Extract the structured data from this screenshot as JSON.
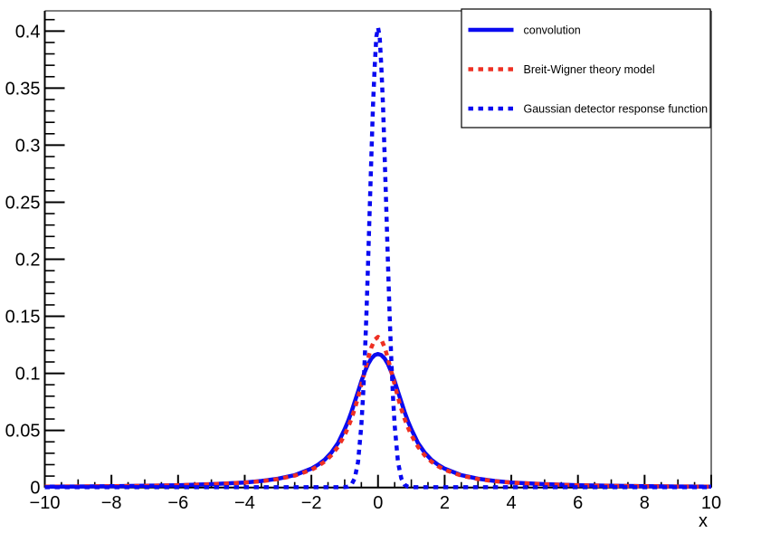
{
  "chart_data": {
    "type": "line",
    "title": "",
    "xlabel": "x",
    "ylabel": "",
    "xlim": [
      -10,
      10
    ],
    "ylim": [
      0,
      0.4177
    ],
    "grid": false,
    "background": "#ffffff",
    "frame_color": "#000000",
    "x_tick_values": [
      -10,
      -8,
      -6,
      -4,
      -2,
      0,
      2,
      4,
      6,
      8,
      10
    ],
    "x_tick_labels": [
      "−10",
      "−8",
      "−6",
      "−4",
      "−2",
      "0",
      "2",
      "4",
      "6",
      "8",
      "10"
    ],
    "x_medium_step": 1,
    "x_minor_step": 0.5,
    "y_tick_values": [
      0,
      0.05,
      0.1,
      0.15,
      0.2,
      0.25,
      0.3,
      0.35,
      0.4
    ],
    "y_tick_labels": [
      "0",
      "0.05",
      "0.1",
      "0.15",
      "0.2",
      "0.25",
      "0.3",
      "0.35",
      "0.4"
    ],
    "y_minor_step": 0.01,
    "legend_position": "top-right",
    "series": [
      {
        "name": "convolution",
        "legend_label": "convolution",
        "color": "#0a0af0",
        "line_style": "solid",
        "line_width": 4.5,
        "points": [
          [
            -10,
            0.0007
          ],
          [
            -9,
            0.0009
          ],
          [
            -8,
            0.0011
          ],
          [
            -7,
            0.0015
          ],
          [
            -6,
            0.002
          ],
          [
            -5,
            0.0029
          ],
          [
            -4,
            0.0044
          ],
          [
            -3.5,
            0.0057
          ],
          [
            -3,
            0.0077
          ],
          [
            -2.5,
            0.0108
          ],
          [
            -2,
            0.0165
          ],
          [
            -1.8,
            0.02
          ],
          [
            -1.6,
            0.0243
          ],
          [
            -1.4,
            0.0305
          ],
          [
            -1.2,
            0.039
          ],
          [
            -1,
            0.051
          ],
          [
            -0.9,
            0.058
          ],
          [
            -0.8,
            0.066
          ],
          [
            -0.7,
            0.075
          ],
          [
            -0.6,
            0.084
          ],
          [
            -0.5,
            0.093
          ],
          [
            -0.4,
            0.101
          ],
          [
            -0.3,
            0.108
          ],
          [
            -0.2,
            0.113
          ],
          [
            -0.1,
            0.116
          ],
          [
            0,
            0.117
          ],
          [
            0.1,
            0.116
          ],
          [
            0.2,
            0.113
          ],
          [
            0.3,
            0.108
          ],
          [
            0.4,
            0.101
          ],
          [
            0.5,
            0.093
          ],
          [
            0.6,
            0.084
          ],
          [
            0.7,
            0.075
          ],
          [
            0.8,
            0.066
          ],
          [
            0.9,
            0.058
          ],
          [
            1,
            0.051
          ],
          [
            1.2,
            0.039
          ],
          [
            1.4,
            0.0305
          ],
          [
            1.6,
            0.0243
          ],
          [
            1.8,
            0.02
          ],
          [
            2,
            0.0165
          ],
          [
            2.5,
            0.0108
          ],
          [
            3,
            0.0077
          ],
          [
            3.5,
            0.0057
          ],
          [
            4,
            0.0044
          ],
          [
            5,
            0.0029
          ],
          [
            6,
            0.002
          ],
          [
            7,
            0.0015
          ],
          [
            8,
            0.0011
          ],
          [
            9,
            0.0009
          ],
          [
            10,
            0.0007
          ]
        ]
      },
      {
        "name": "breit-wigner",
        "legend_label": "Breit-Wigner theory model",
        "color": "#ee3023",
        "line_style": "dashed",
        "line_width": 4.5,
        "points": [
          [
            -10,
            0.0007
          ],
          [
            -9,
            0.0009
          ],
          [
            -8,
            0.0011
          ],
          [
            -7,
            0.0014
          ],
          [
            -6,
            0.0019
          ],
          [
            -5,
            0.0028
          ],
          [
            -4,
            0.0043
          ],
          [
            -3.5,
            0.0055
          ],
          [
            -3,
            0.0074
          ],
          [
            -2.5,
            0.0104
          ],
          [
            -2,
            0.0155
          ],
          [
            -1.8,
            0.0187
          ],
          [
            -1.6,
            0.0227
          ],
          [
            -1.4,
            0.0282
          ],
          [
            -1.2,
            0.0357
          ],
          [
            -1,
            0.0459
          ],
          [
            -0.9,
            0.0524
          ],
          [
            -0.8,
            0.06
          ],
          [
            -0.7,
            0.0688
          ],
          [
            -0.6,
            0.0788
          ],
          [
            -0.5,
            0.0899
          ],
          [
            -0.4,
            0.1015
          ],
          [
            -0.3,
            0.1129
          ],
          [
            -0.2,
            0.1228
          ],
          [
            -0.1,
            0.1296
          ],
          [
            0,
            0.132
          ],
          [
            0.1,
            0.1296
          ],
          [
            0.2,
            0.1228
          ],
          [
            0.3,
            0.1129
          ],
          [
            0.4,
            0.1015
          ],
          [
            0.5,
            0.0899
          ],
          [
            0.6,
            0.0788
          ],
          [
            0.7,
            0.0688
          ],
          [
            0.8,
            0.06
          ],
          [
            0.9,
            0.0524
          ],
          [
            1,
            0.0459
          ],
          [
            1.2,
            0.0357
          ],
          [
            1.4,
            0.0282
          ],
          [
            1.6,
            0.0227
          ],
          [
            1.8,
            0.0187
          ],
          [
            2,
            0.0155
          ],
          [
            2.5,
            0.0104
          ],
          [
            3,
            0.0074
          ],
          [
            3.5,
            0.0055
          ],
          [
            4,
            0.0043
          ],
          [
            5,
            0.0028
          ],
          [
            6,
            0.0019
          ],
          [
            7,
            0.0014
          ],
          [
            8,
            0.0011
          ],
          [
            9,
            0.0009
          ],
          [
            10,
            0.0007
          ]
        ]
      },
      {
        "name": "gaussian-response",
        "legend_label": "Gaussian detector response function",
        "color": "#0a0af0",
        "line_style": "dashed",
        "line_width": 4.5,
        "points": [
          [
            -10,
            0.0002
          ],
          [
            -8,
            0.0002
          ],
          [
            -6,
            0.0002
          ],
          [
            -4,
            0.0002
          ],
          [
            -3,
            0.0002
          ],
          [
            -2,
            0.0002
          ],
          [
            -1.5,
            0.0002
          ],
          [
            -1.2,
            0.0002
          ],
          [
            -1,
            0.0003
          ],
          [
            -0.9,
            0.0006
          ],
          [
            -0.8,
            0.0024
          ],
          [
            -0.7,
            0.0079
          ],
          [
            -0.6,
            0.0224
          ],
          [
            -0.5,
            0.0541
          ],
          [
            -0.45,
            0.0797
          ],
          [
            -0.4,
            0.111
          ],
          [
            -0.35,
            0.1507
          ],
          [
            -0.3,
            0.195
          ],
          [
            -0.25,
            0.2421
          ],
          [
            -0.2,
            0.29
          ],
          [
            -0.15,
            0.3345
          ],
          [
            -0.1,
            0.369
          ],
          [
            -0.05,
            0.395
          ],
          [
            0,
            0.403
          ],
          [
            0.05,
            0.395
          ],
          [
            0.1,
            0.369
          ],
          [
            0.15,
            0.3345
          ],
          [
            0.2,
            0.29
          ],
          [
            0.25,
            0.2421
          ],
          [
            0.3,
            0.195
          ],
          [
            0.35,
            0.1507
          ],
          [
            0.4,
            0.111
          ],
          [
            0.45,
            0.0797
          ],
          [
            0.5,
            0.0541
          ],
          [
            0.6,
            0.0224
          ],
          [
            0.7,
            0.0079
          ],
          [
            0.8,
            0.0024
          ],
          [
            0.9,
            0.0006
          ],
          [
            1,
            0.0003
          ],
          [
            1.2,
            0.0002
          ],
          [
            1.5,
            0.0002
          ],
          [
            2,
            0.0002
          ],
          [
            3,
            0.0002
          ],
          [
            4,
            0.0002
          ],
          [
            6,
            0.0002
          ],
          [
            8,
            0.0002
          ],
          [
            10,
            0.0002
          ]
        ]
      }
    ]
  }
}
